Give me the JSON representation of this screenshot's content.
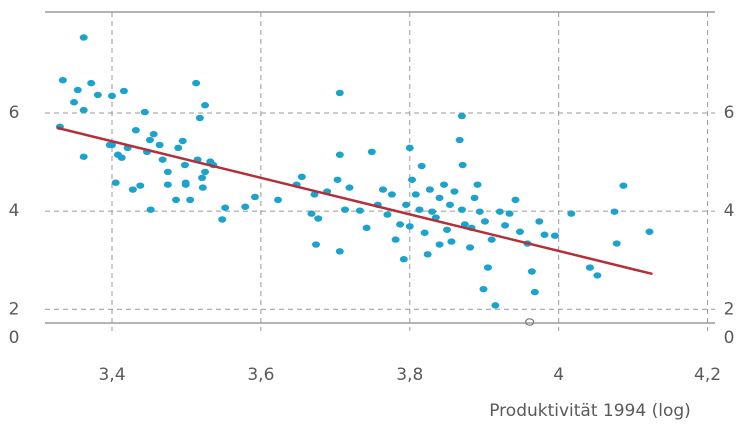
{
  "chart_data": {
    "type": "scatter",
    "xlabel": "Produktivität 1994 (log)",
    "xlim": [
      3.31,
      4.21
    ],
    "ylim": [
      1.72,
      8.06
    ],
    "xticks": [
      {
        "value": 3.4,
        "label": "3,4"
      },
      {
        "value": 3.6,
        "label": "3,6"
      },
      {
        "value": 3.8,
        "label": "3,8"
      },
      4,
      {
        "value": 4.2,
        "label": "4,2"
      }
    ],
    "yticks": [
      0,
      2,
      4,
      6
    ],
    "grid": true,
    "series": [
      {
        "color": "#1ba3cc",
        "x": [
          3.362,
          3.334,
          3.372,
          3.354,
          3.381,
          3.4,
          3.416,
          3.349,
          3.362,
          3.33,
          3.362,
          3.4,
          3.408,
          3.413,
          3.397,
          3.421,
          3.432,
          3.444,
          3.451,
          3.456,
          3.447,
          3.464,
          3.468,
          3.475,
          3.489,
          3.495,
          3.498,
          3.499,
          3.405,
          3.428,
          3.438,
          3.452,
          3.475,
          3.486,
          3.499,
          3.505,
          3.515,
          3.521,
          3.525,
          3.522,
          3.532,
          3.536,
          3.525,
          3.513,
          3.518,
          3.552,
          3.548,
          3.579,
          3.592,
          3.623,
          3.648,
          3.655,
          3.672,
          3.668,
          3.677,
          3.674,
          3.689,
          3.703,
          3.706,
          3.706,
          3.719,
          3.713,
          3.706,
          3.733,
          3.742,
          3.749,
          3.757,
          3.764,
          3.77,
          3.776,
          3.781,
          3.787,
          3.792,
          3.795,
          3.8,
          3.803,
          3.8,
          3.808,
          3.813,
          3.816,
          3.82,
          3.824,
          3.827,
          3.83,
          3.835,
          3.84,
          3.84,
          3.846,
          3.85,
          3.854,
          3.856,
          3.86,
          3.867,
          3.87,
          3.87,
          3.871,
          3.874,
          3.881,
          3.883,
          3.887,
          3.891,
          3.894,
          3.901,
          3.905,
          3.899,
          3.91,
          3.915,
          3.921,
          3.928,
          3.934,
          3.942,
          3.948,
          3.958,
          3.964,
          3.968,
          3.974,
          3.981,
          3.995,
          4.017,
          4.042,
          4.052,
          4.075,
          4.078,
          4.087,
          4.122
        ],
        "y": [
          7.54,
          6.67,
          6.61,
          6.47,
          6.37,
          6.35,
          6.45,
          6.22,
          6.06,
          5.72,
          5.11,
          5.35,
          5.15,
          5.09,
          5.35,
          5.29,
          5.65,
          6.02,
          5.45,
          5.57,
          5.21,
          5.35,
          5.05,
          4.8,
          5.29,
          5.43,
          4.94,
          4.54,
          4.58,
          4.44,
          4.52,
          4.03,
          4.54,
          4.23,
          4.58,
          4.23,
          5.05,
          4.68,
          4.8,
          4.48,
          5.01,
          4.94,
          6.16,
          6.61,
          5.9,
          4.07,
          3.83,
          4.09,
          4.29,
          4.23,
          4.54,
          4.7,
          4.34,
          3.95,
          3.85,
          3.32,
          4.4,
          4.64,
          6.41,
          5.15,
          4.48,
          4.03,
          3.18,
          4.01,
          3.66,
          5.21,
          4.13,
          4.44,
          3.93,
          4.34,
          3.42,
          3.73,
          3.02,
          4.13,
          5.29,
          4.64,
          3.69,
          4.34,
          4.03,
          4.92,
          3.56,
          3.12,
          4.44,
          3.99,
          3.87,
          4.27,
          3.32,
          4.54,
          3.62,
          4.13,
          3.38,
          4.4,
          5.45,
          5.94,
          4.03,
          4.94,
          3.73,
          3.26,
          3.66,
          4.27,
          4.54,
          3.99,
          3.79,
          2.85,
          2.41,
          3.42,
          2.08,
          3.99,
          3.71,
          3.95,
          4.23,
          3.58,
          3.34,
          2.77,
          2.35,
          3.79,
          3.52,
          3.5,
          3.95,
          2.85,
          2.69,
          3.99,
          3.34,
          4.52,
          3.58
        ]
      },
      {
        "color": "#777777",
        "hollow": true,
        "x": [
          3.961
        ],
        "y": [
          1.74
        ]
      }
    ],
    "trend": {
      "color": "#b3303a",
      "x": [
        3.326,
        4.126
      ],
      "y": [
        5.7,
        2.72
      ]
    }
  }
}
